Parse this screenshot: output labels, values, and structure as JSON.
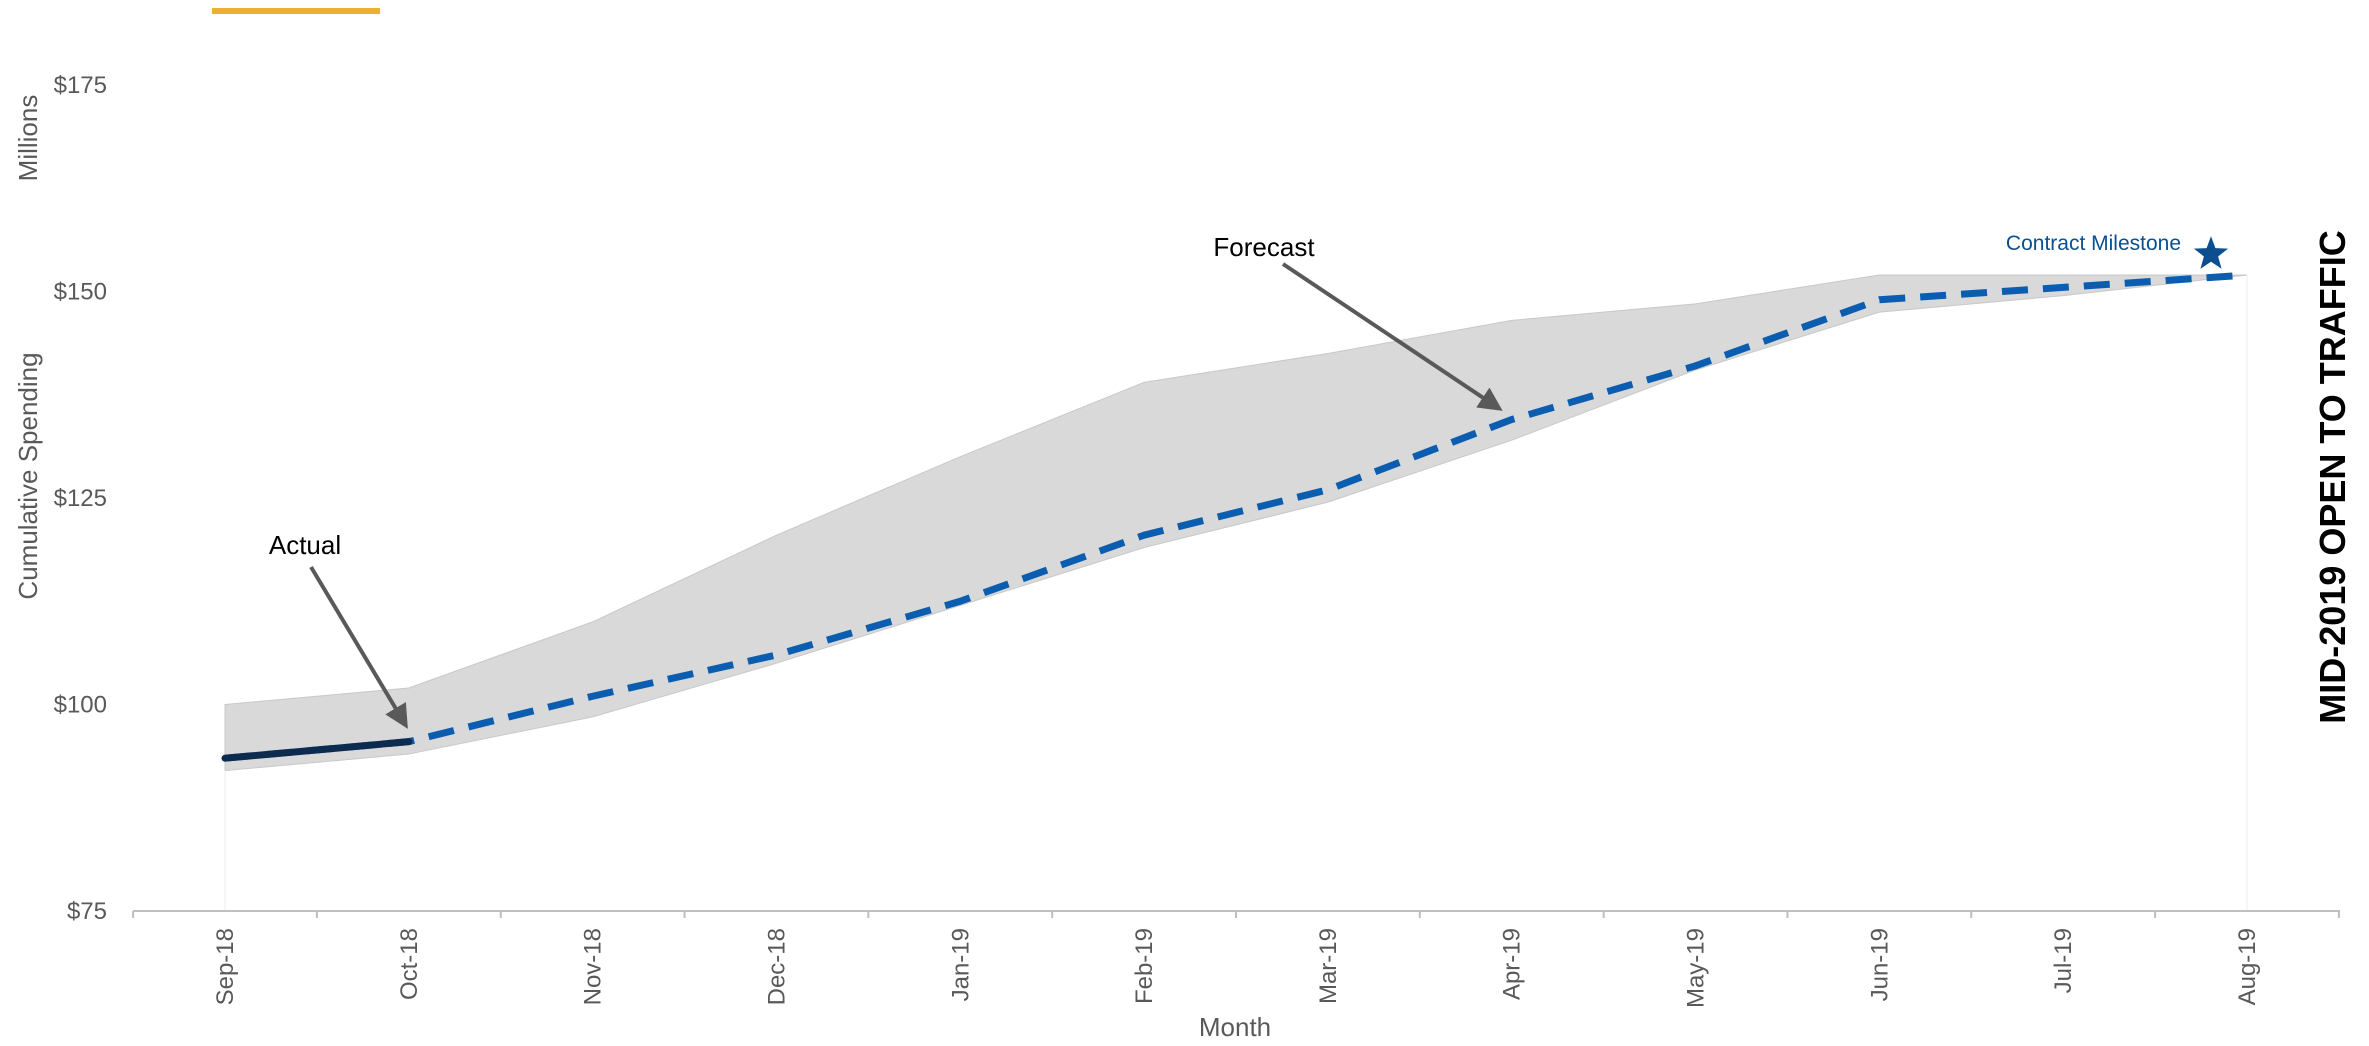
{
  "chart_data": {
    "type": "line",
    "title": "",
    "xlabel": "Month",
    "ylabel": "Cumulative Spending",
    "yunit_label": "Millions",
    "ylim": [
      75,
      180
    ],
    "yticks": [
      75,
      100,
      125,
      150,
      175
    ],
    "ytick_labels": [
      "$75",
      "$100",
      "$125",
      "$150",
      "$175"
    ],
    "categories": [
      "Sep-18",
      "Oct-18",
      "Nov-18",
      "Dec-18",
      "Jan-19",
      "Feb-19",
      "Mar-19",
      "Apr-19",
      "May-19",
      "Jun-19",
      "Jul-19",
      "Aug-19"
    ],
    "series": [
      {
        "name": "Actual",
        "style": "solid",
        "color": "#0D2A4F",
        "values": [
          93.5,
          95.5,
          null,
          null,
          null,
          null,
          null,
          null,
          null,
          null,
          null,
          null
        ]
      },
      {
        "name": "Forecast",
        "style": "dashed",
        "color": "#0B5DB0",
        "values": [
          93.5,
          95.5,
          101,
          106,
          112.5,
          120.5,
          126,
          134.5,
          141,
          149,
          150.5,
          152
        ]
      }
    ],
    "range_band": {
      "color": "#D9D9D9",
      "upper": [
        100,
        102,
        110,
        120.5,
        130,
        139,
        142.5,
        146.5,
        148.5,
        152,
        152,
        152
      ],
      "lower": [
        92,
        94,
        98.5,
        105,
        112,
        119,
        124.5,
        132,
        140.5,
        147.5,
        149.5,
        152
      ]
    },
    "annotations": [
      {
        "text": "Actual",
        "points_to": {
          "x": "Oct-18",
          "y": 95.5
        }
      },
      {
        "text": "Forecast",
        "points_to": {
          "x": "Apr-19",
          "y": 134.5
        }
      }
    ],
    "milestone": {
      "label": "Contract Milestone",
      "x": "Aug-19",
      "y": 155,
      "color": "#0B4F8F"
    },
    "grid": false,
    "legend": "none"
  },
  "side_banner": {
    "text": "MID-2019 OPEN TO TRAFFIC"
  },
  "colors": {
    "accent_bar": "#E8B230",
    "axis": "#BFBFBF",
    "text": "#595959"
  }
}
